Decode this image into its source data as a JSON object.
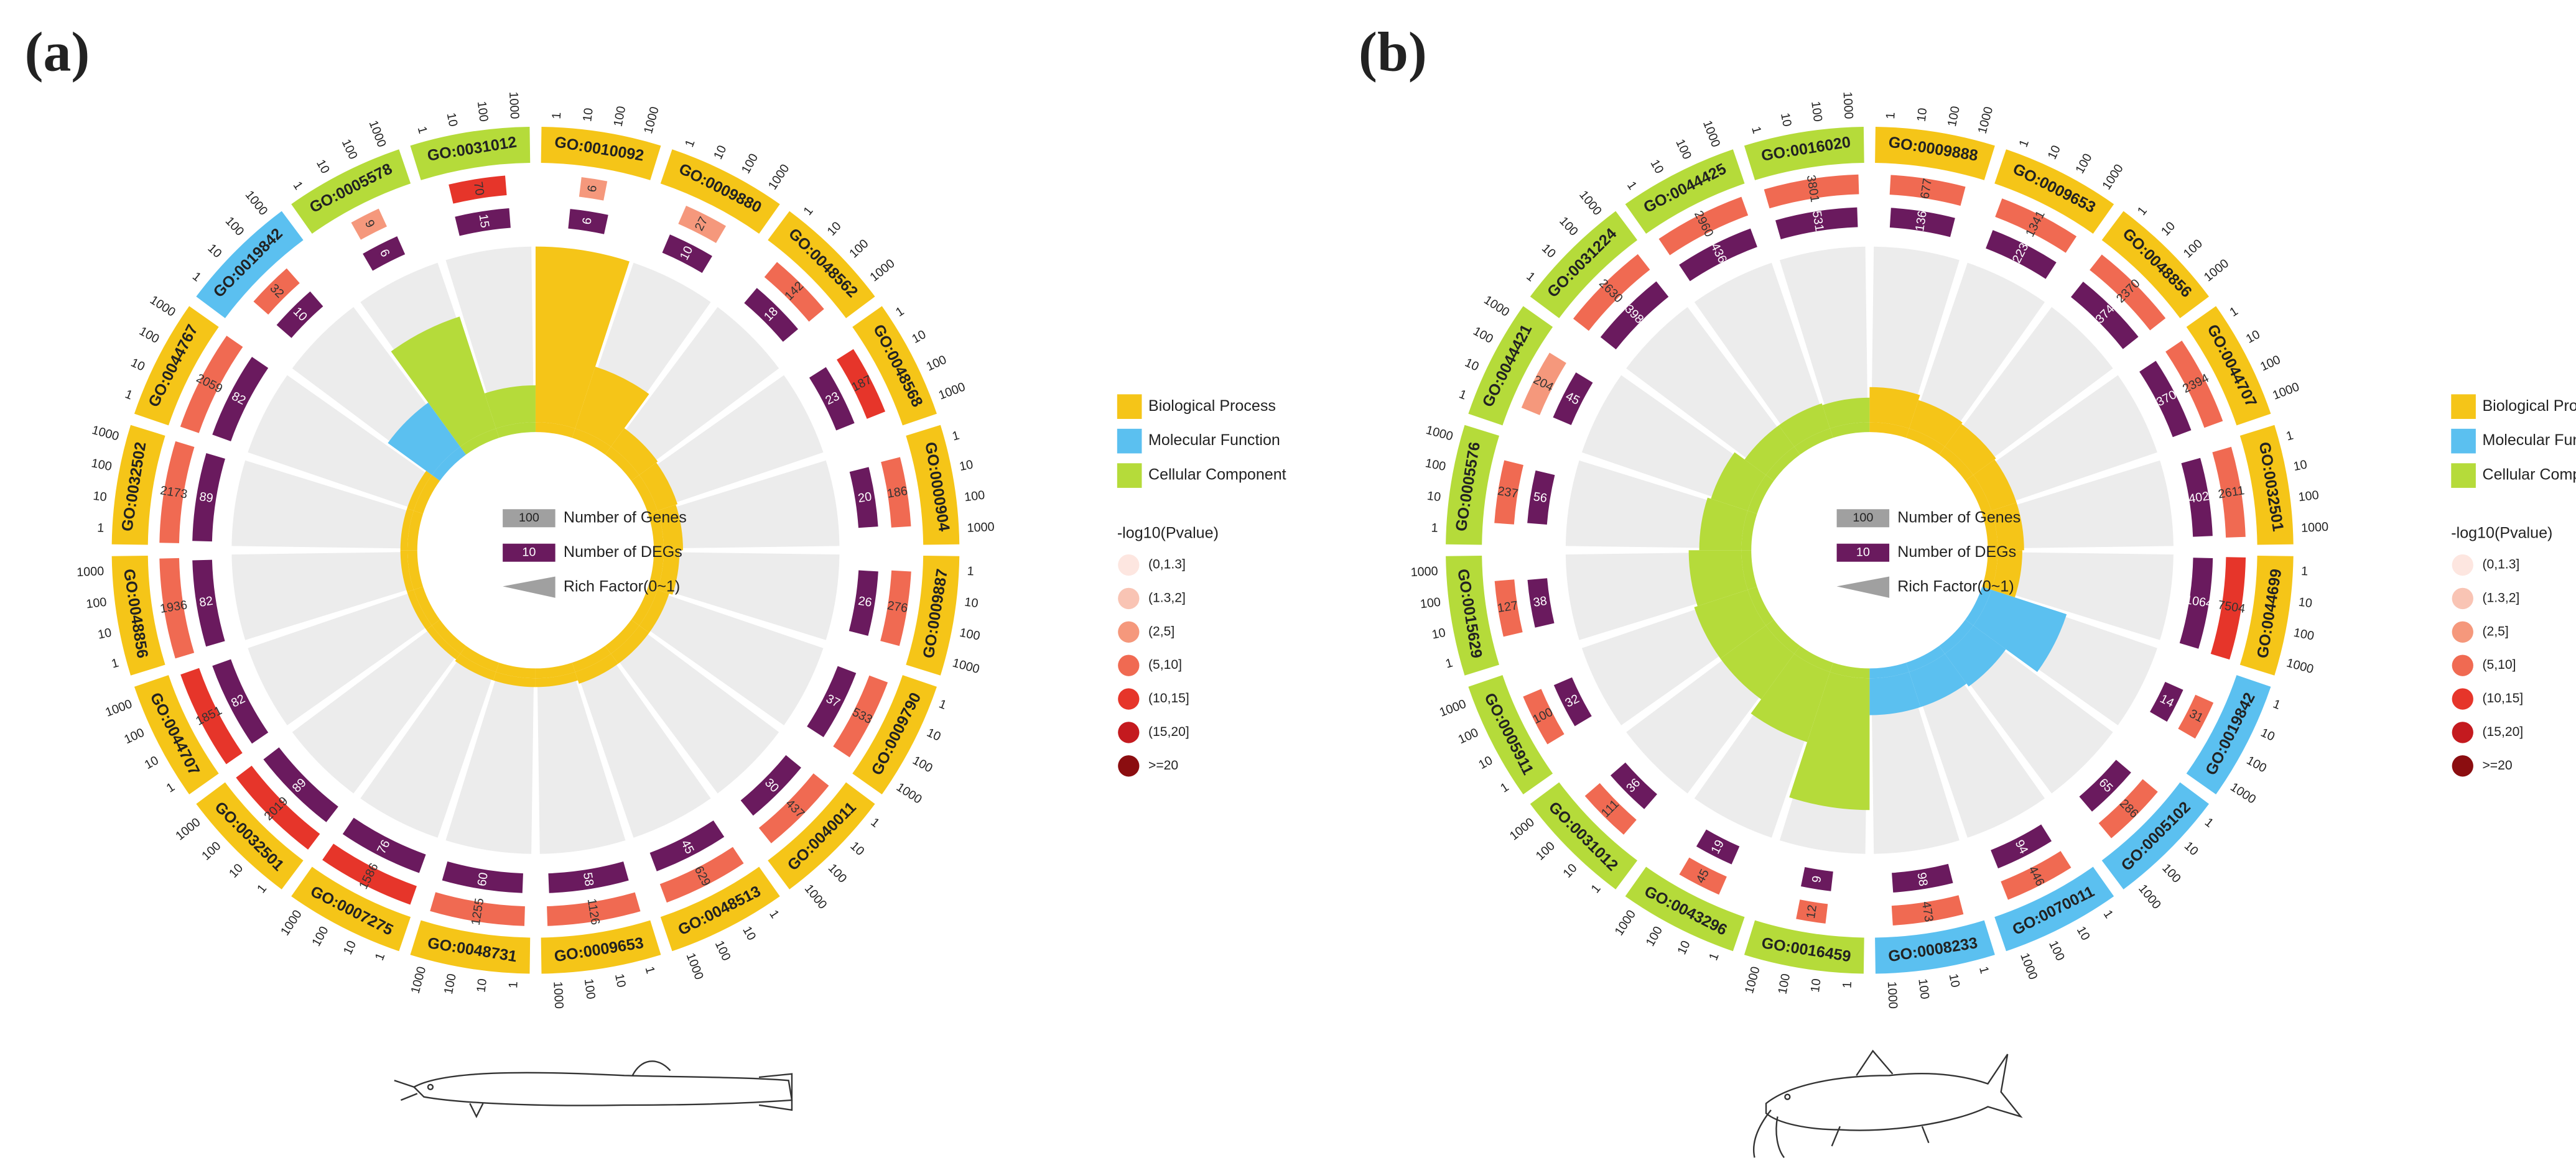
{
  "chart_data": [
    {
      "type": "circular_bar",
      "panel_label": "(a)",
      "categories": [
        "GO:0010092",
        "GO:0009880",
        "GO:0048562",
        "GO:0048568",
        "GO:0000904",
        "GO:0009887",
        "GO:0009790",
        "GO:0040011",
        "GO:0048513",
        "GO:0009653",
        "GO:0048731",
        "GO:0007275",
        "GO:0032501",
        "GO:0044707",
        "GO:0048856",
        "GO:0032502",
        "GO:0044767",
        "GO:0019842",
        "GO:0005578",
        "GO:0031012"
      ],
      "colors": [
        "#f5c518",
        "#f5c518",
        "#f5c518",
        "#f5c518",
        "#f5c518",
        "#f5c518",
        "#f5c518",
        "#f5c518",
        "#f5c518",
        "#f5c518",
        "#f5c518",
        "#f5c518",
        "#f5c518",
        "#f5c518",
        "#f5c518",
        "#f5c518",
        "#f5c518",
        "#5bc0f0",
        "#b5db3a",
        "#b5db3a"
      ],
      "series": [
        {
          "name": "Number of Genes",
          "color": "#a0a0a0",
          "sample": 100,
          "values": [
            6,
            27,
            142,
            187,
            186,
            276,
            533,
            437,
            629,
            1126,
            1255,
            1586,
            2019,
            1851,
            1936,
            2173,
            2059,
            32,
            9,
            70
          ],
          "colors": [
            "#f5987c",
            "#f5987c",
            "#f06a52",
            "#e6352a",
            "#f06a52",
            "#f06a52",
            "#f06a52",
            "#f06a52",
            "#f06a52",
            "#f06a52",
            "#f06a52",
            "#e6352a",
            "#e6352a",
            "#e6352a",
            "#f06a52",
            "#f06a52",
            "#f06a52",
            "#f06a52",
            "#f5987c",
            "#e6352a"
          ]
        },
        {
          "name": "Number of DEGs",
          "color": "#6a1a5e",
          "sample": 10,
          "values": [
            6,
            10,
            18,
            23,
            20,
            26,
            37,
            30,
            45,
            58,
            60,
            76,
            89,
            82,
            82,
            89,
            82,
            10,
            6,
            15
          ]
        },
        {
          "name": "Rich Factor(0~1)",
          "color": "#a0a0a0",
          "values": [
            1,
            0.37,
            0.13,
            0.12,
            0.11,
            0.09,
            0.07,
            0.07,
            0.07,
            0.05,
            0.05,
            0.05,
            0.04,
            0.04,
            0.04,
            0.04,
            0.04,
            0.31,
            0.67,
            0.21
          ]
        }
      ],
      "rticks": [
        1,
        10,
        100,
        1000
      ],
      "rlim": [
        0,
        1
      ],
      "groups": [
        {
          "name": "Biological Process",
          "color": "#f5c518"
        },
        {
          "name": "Molecular Function",
          "color": "#5bc0f0"
        },
        {
          "name": "Cellular Component",
          "color": "#b5db3a"
        }
      ],
      "pvalue_legend": {
        "title": "-log10(Pvalue)",
        "classes": [
          "(0,1.3]",
          "(1.3,2]",
          "(2,5]",
          "(5,10]",
          "(10,15]",
          "(15,20]",
          ">=20"
        ],
        "colors": [
          "#fde6e0",
          "#f9c4b4",
          "#f5987c",
          "#f06a52",
          "#e6352a",
          "#c41a1f",
          "#8b0d10"
        ]
      }
    },
    {
      "type": "circular_bar",
      "panel_label": "(b)",
      "categories": [
        "GO:0009888",
        "GO:0009653",
        "GO:0048856",
        "GO:0044707",
        "GO:0032501",
        "GO:0044699",
        "GO:0019842",
        "GO:0005102",
        "GO:0070011",
        "GO:0008233",
        "GO:0016459",
        "GO:0043296",
        "GO:0031012",
        "GO:0005911",
        "GO:0015629",
        "GO:0005576",
        "GO:0044421",
        "GO:0031224",
        "GO:0044425",
        "GO:0016020"
      ],
      "colors": [
        "#f5c518",
        "#f5c518",
        "#f5c518",
        "#f5c518",
        "#f5c518",
        "#f5c518",
        "#5bc0f0",
        "#5bc0f0",
        "#5bc0f0",
        "#5bc0f0",
        "#b5db3a",
        "#b5db3a",
        "#b5db3a",
        "#b5db3a",
        "#b5db3a",
        "#b5db3a",
        "#b5db3a",
        "#b5db3a",
        "#b5db3a",
        "#b5db3a"
      ],
      "series": [
        {
          "name": "Number of Genes",
          "color": "#a0a0a0",
          "sample": 100,
          "values": [
            677,
            1341,
            2370,
            2394,
            2611,
            7504,
            31,
            286,
            446,
            473,
            12,
            45,
            111,
            100,
            127,
            237,
            204,
            2630,
            2960,
            3801
          ],
          "colors": [
            "#f06a52",
            "#f06a52",
            "#f06a52",
            "#f06a52",
            "#f06a52",
            "#e6352a",
            "#f06a52",
            "#f06a52",
            "#f06a52",
            "#f06a52",
            "#f06a52",
            "#f06a52",
            "#f06a52",
            "#f06a52",
            "#f06a52",
            "#f06a52",
            "#f5987c",
            "#f06a52",
            "#f06a52",
            "#f06a52"
          ]
        },
        {
          "name": "Number of DEGs",
          "color": "#6a1a5e",
          "sample": 10,
          "values": [
            136,
            223,
            374,
            370,
            402,
            1064,
            14,
            65,
            94,
            98,
            9,
            19,
            36,
            32,
            38,
            56,
            45,
            398,
            436,
            531
          ]
        },
        {
          "name": "Rich Factor(0~1)",
          "color": "#a0a0a0",
          "values": [
            0.2,
            0.17,
            0.16,
            0.15,
            0.15,
            0.14,
            0.45,
            0.23,
            0.21,
            0.21,
            0.75,
            0.42,
            0.32,
            0.32,
            0.3,
            0.24,
            0.22,
            0.15,
            0.15,
            0.14
          ]
        }
      ],
      "rticks": [
        1,
        10,
        100,
        1000
      ],
      "rlim": [
        0,
        1
      ],
      "groups": [
        {
          "name": "Biological Process",
          "color": "#f5c518"
        },
        {
          "name": "Molecular Function",
          "color": "#5bc0f0"
        },
        {
          "name": "Cellular Component",
          "color": "#b5db3a"
        }
      ],
      "pvalue_legend": {
        "title": "-log10(Pvalue)",
        "classes": [
          "(0,1.3]",
          "(1.3,2]",
          "(2,5]",
          "(5,10]",
          "(10,15]",
          "(15,20]",
          ">=20"
        ],
        "colors": [
          "#fde6e0",
          "#f9c4b4",
          "#f5987c",
          "#f06a52",
          "#e6352a",
          "#c41a1f",
          "#8b0d10"
        ]
      }
    }
  ]
}
